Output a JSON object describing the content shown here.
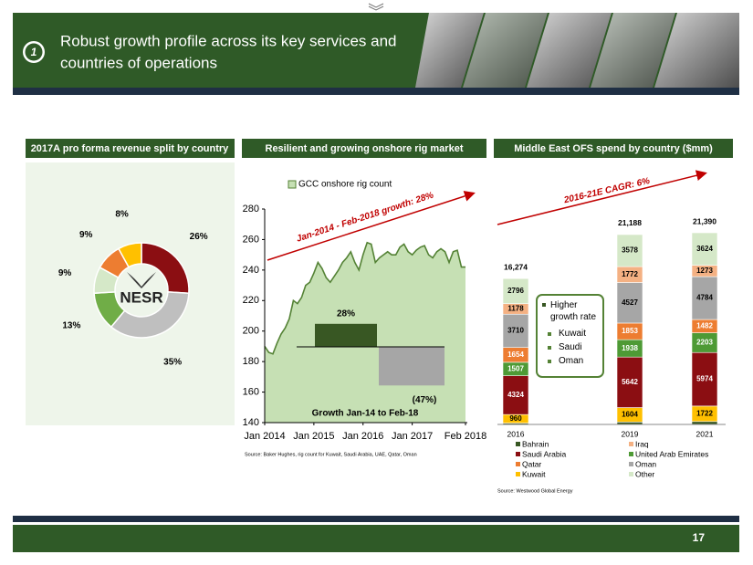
{
  "header": {
    "number": "1",
    "title_lines": [
      "Robust growth profile across its key services and",
      "countries of operations"
    ]
  },
  "footer": {
    "page": "17"
  },
  "chart_data": [
    {
      "type": "donut",
      "title": "2017A pro forma revenue split by country",
      "center_label": "NESR",
      "values": [
        26,
        35,
        13,
        9,
        9,
        8
      ],
      "value_labels": [
        "26%",
        "35%",
        "13%",
        "9%",
        "9%",
        "8%"
      ],
      "colors": [
        "#8b0e12",
        "#bfbfbf",
        "#70ad47",
        "#d5e8c8",
        "#ed7d31",
        "#ffc000"
      ]
    },
    {
      "type": "area",
      "title": "Resilient and growing onshore rig market",
      "x": [
        "2014-01",
        "2014-02",
        "2014-03",
        "2014-04",
        "2014-05",
        "2014-06",
        "2014-07",
        "2014-08",
        "2014-09",
        "2014-10",
        "2014-11",
        "2014-12",
        "2015-01",
        "2015-02",
        "2015-03",
        "2015-04",
        "2015-05",
        "2015-06",
        "2015-07",
        "2015-08",
        "2015-09",
        "2015-10",
        "2015-11",
        "2015-12",
        "2016-01",
        "2016-02",
        "2016-03",
        "2016-04",
        "2016-05",
        "2016-06",
        "2016-07",
        "2016-08",
        "2016-09",
        "2016-10",
        "2016-11",
        "2016-12",
        "2017-01",
        "2017-02",
        "2017-03",
        "2017-04",
        "2017-05",
        "2017-06",
        "2017-07",
        "2017-08",
        "2017-09",
        "2017-10",
        "2017-11",
        "2017-12",
        "2018-01",
        "2018-02"
      ],
      "series": [
        {
          "name": "GCC onshore rig count",
          "color": "#548235",
          "fill": "#c6e0b4",
          "values": [
            190,
            186,
            185,
            192,
            198,
            202,
            208,
            220,
            218,
            222,
            230,
            232,
            238,
            245,
            241,
            235,
            232,
            236,
            240,
            245,
            248,
            252,
            245,
            240,
            250,
            258,
            257,
            245,
            248,
            250,
            252,
            250,
            250,
            255,
            257,
            252,
            250,
            253,
            255,
            256,
            250,
            248,
            252,
            254,
            252,
            245,
            252,
            253,
            242,
            242
          ]
        }
      ],
      "ylim": [
        140,
        280
      ],
      "yticks": [
        140,
        160,
        180,
        200,
        220,
        240,
        260,
        280
      ],
      "xticks": [
        {
          "value": "2014-01",
          "label": "Jan 2014"
        },
        {
          "value": "2015-01",
          "label": "Jan 2015"
        },
        {
          "value": "2016-01",
          "label": "Jan 2016"
        },
        {
          "value": "2017-01",
          "label": "Jan 2017"
        },
        {
          "value": "2018-02",
          "label": "Feb 2018"
        }
      ],
      "annotation": "Jan-2014 - Feb-2018 growth: 28%",
      "inset": {
        "title": "Growth Jan-14 to Feb-18",
        "values": [
          28,
          -47
        ],
        "value_labels": [
          "28%",
          "(47%)"
        ],
        "colors": [
          "#385723",
          "#a6a6a6"
        ]
      },
      "source": "Source: Baker Hughes, rig count for Kuwait, Saudi Arabia, UAE, Qatar, Oman"
    },
    {
      "type": "stacked-bar",
      "title": "Middle East OFS spend by country ($mm)",
      "categories": [
        "2016",
        "2019",
        "2021"
      ],
      "series": [
        {
          "name": "Bahrain",
          "color": "#385723",
          "values": [
            145,
            274,
            328
          ]
        },
        {
          "name": "Iraq",
          "color": "#f4b183",
          "values": [
            1178,
            1772,
            1273
          ]
        },
        {
          "name": "Saudi Arabia",
          "color": "#8b0e12",
          "values": [
            4324,
            5642,
            5974
          ]
        },
        {
          "name": "United Arab Emirates",
          "color": "#4e9a35",
          "values": [
            1507,
            1938,
            2203
          ]
        },
        {
          "name": "Qatar",
          "color": "#ed7d31",
          "values": [
            1654,
            1853,
            1482
          ]
        },
        {
          "name": "Oman",
          "color": "#a6a6a6",
          "values": [
            3710,
            4527,
            4784
          ]
        },
        {
          "name": "Kuwait",
          "color": "#ffc000",
          "values": [
            960,
            1604,
            1722
          ]
        },
        {
          "name": "Other",
          "color": "#d5e8c8",
          "values": [
            2796,
            3578,
            3624
          ]
        }
      ],
      "totals": [
        16274,
        21188,
        21390
      ],
      "total_labels": [
        "16,274",
        "21,188",
        "21,390"
      ],
      "annotation": "2016-21E CAGR: 6%",
      "callout": {
        "title": "Higher growth rate",
        "items": [
          "Kuwait",
          "Saudi",
          "Oman"
        ]
      },
      "source": "Source: Westwood Global Energy"
    }
  ]
}
